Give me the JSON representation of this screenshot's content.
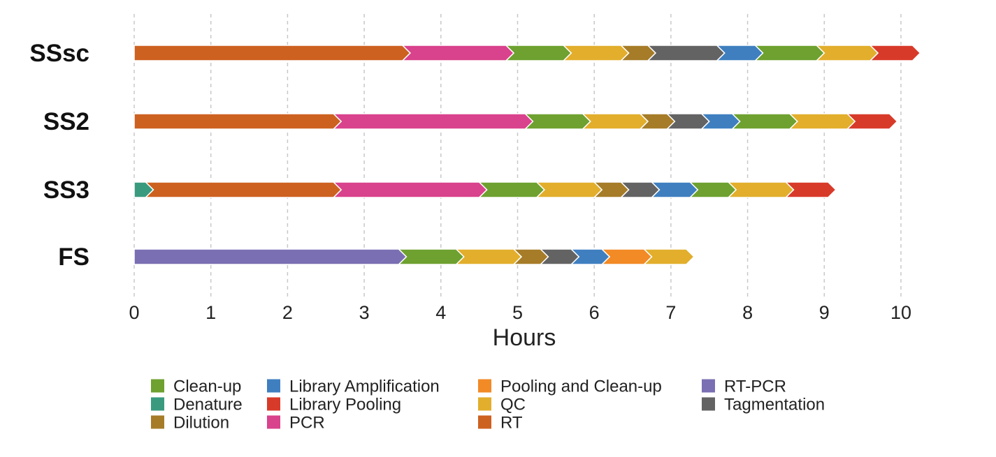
{
  "chart_data": {
    "type": "bar",
    "orientation": "horizontal",
    "stacked": true,
    "xlabel": "Hours",
    "xlim": [
      0,
      10
    ],
    "x_ticks": [
      "0",
      "1",
      "2",
      "3",
      "4",
      "5",
      "6",
      "7",
      "8",
      "9",
      "10"
    ],
    "grid": "vertical dashed",
    "legend_position": "bottom",
    "categories": [
      "SSsc",
      "SS2",
      "SS3",
      "FS"
    ],
    "legend": [
      {
        "name": "Clean-up",
        "color": "#6ea130"
      },
      {
        "name": "Library Amplification",
        "color": "#3f7fc0"
      },
      {
        "name": "Pooling and Clean-up",
        "color": "#f28a26"
      },
      {
        "name": "RT-PCR",
        "color": "#7a6fb3"
      },
      {
        "name": "Denature",
        "color": "#3a9a7e"
      },
      {
        "name": "Library Pooling",
        "color": "#d83a2a"
      },
      {
        "name": "QC",
        "color": "#e2ae2c"
      },
      {
        "name": "Tagmentation",
        "color": "#636363"
      },
      {
        "name": "Dilution",
        "color": "#a67c28"
      },
      {
        "name": "PCR",
        "color": "#d9428c"
      },
      {
        "name": "RT",
        "color": "#cd6120"
      }
    ],
    "rows": [
      {
        "name": "SSsc",
        "segments": [
          {
            "step": "RT",
            "start": 0,
            "end": 3.5
          },
          {
            "step": "PCR",
            "start": 3.5,
            "end": 4.85
          },
          {
            "step": "Clean-up",
            "start": 4.85,
            "end": 5.6
          },
          {
            "step": "QC",
            "start": 5.6,
            "end": 6.35
          },
          {
            "step": "Dilution",
            "start": 6.35,
            "end": 6.7
          },
          {
            "step": "Tagmentation",
            "start": 6.7,
            "end": 7.6
          },
          {
            "step": "Library Amplification",
            "start": 7.6,
            "end": 8.1
          },
          {
            "step": "Clean-up",
            "start": 8.1,
            "end": 8.9
          },
          {
            "step": "QC",
            "start": 8.9,
            "end": 9.6
          },
          {
            "step": "Library Pooling",
            "start": 9.6,
            "end": 10.15
          }
        ]
      },
      {
        "name": "SS2",
        "segments": [
          {
            "step": "RT",
            "start": 0,
            "end": 2.6
          },
          {
            "step": "PCR",
            "start": 2.6,
            "end": 5.1
          },
          {
            "step": "Clean-up",
            "start": 5.1,
            "end": 5.85
          },
          {
            "step": "QC",
            "start": 5.85,
            "end": 6.6
          },
          {
            "step": "Dilution",
            "start": 6.6,
            "end": 6.95
          },
          {
            "step": "Tagmentation",
            "start": 6.95,
            "end": 7.4
          },
          {
            "step": "Library Amplification",
            "start": 7.4,
            "end": 7.8
          },
          {
            "step": "Clean-up",
            "start": 7.8,
            "end": 8.55
          },
          {
            "step": "QC",
            "start": 8.55,
            "end": 9.3
          },
          {
            "step": "Library Pooling",
            "start": 9.3,
            "end": 9.85
          }
        ]
      },
      {
        "name": "SS3",
        "segments": [
          {
            "step": "Denature",
            "start": 0,
            "end": 0.15
          },
          {
            "step": "RT",
            "start": 0.15,
            "end": 2.6
          },
          {
            "step": "PCR",
            "start": 2.6,
            "end": 4.5
          },
          {
            "step": "Clean-up",
            "start": 4.5,
            "end": 5.25
          },
          {
            "step": "QC",
            "start": 5.25,
            "end": 6.0
          },
          {
            "step": "Dilution",
            "start": 6.0,
            "end": 6.35
          },
          {
            "step": "Tagmentation",
            "start": 6.35,
            "end": 6.75
          },
          {
            "step": "Library Amplification",
            "start": 6.75,
            "end": 7.25
          },
          {
            "step": "Clean-up",
            "start": 7.25,
            "end": 7.75
          },
          {
            "step": "QC",
            "start": 7.75,
            "end": 8.5
          },
          {
            "step": "Library Pooling",
            "start": 8.5,
            "end": 9.05
          }
        ]
      },
      {
        "name": "FS",
        "segments": [
          {
            "step": "RT-PCR",
            "start": 0,
            "end": 3.45
          },
          {
            "step": "Clean-up",
            "start": 3.45,
            "end": 4.2
          },
          {
            "step": "QC",
            "start": 4.2,
            "end": 4.95
          },
          {
            "step": "Dilution",
            "start": 4.95,
            "end": 5.3
          },
          {
            "step": "Tagmentation",
            "start": 5.3,
            "end": 5.7
          },
          {
            "step": "Library Amplification",
            "start": 5.7,
            "end": 6.1
          },
          {
            "step": "Pooling and Clean-up",
            "start": 6.1,
            "end": 6.65
          },
          {
            "step": "QC",
            "start": 6.65,
            "end": 7.2
          }
        ]
      }
    ]
  }
}
